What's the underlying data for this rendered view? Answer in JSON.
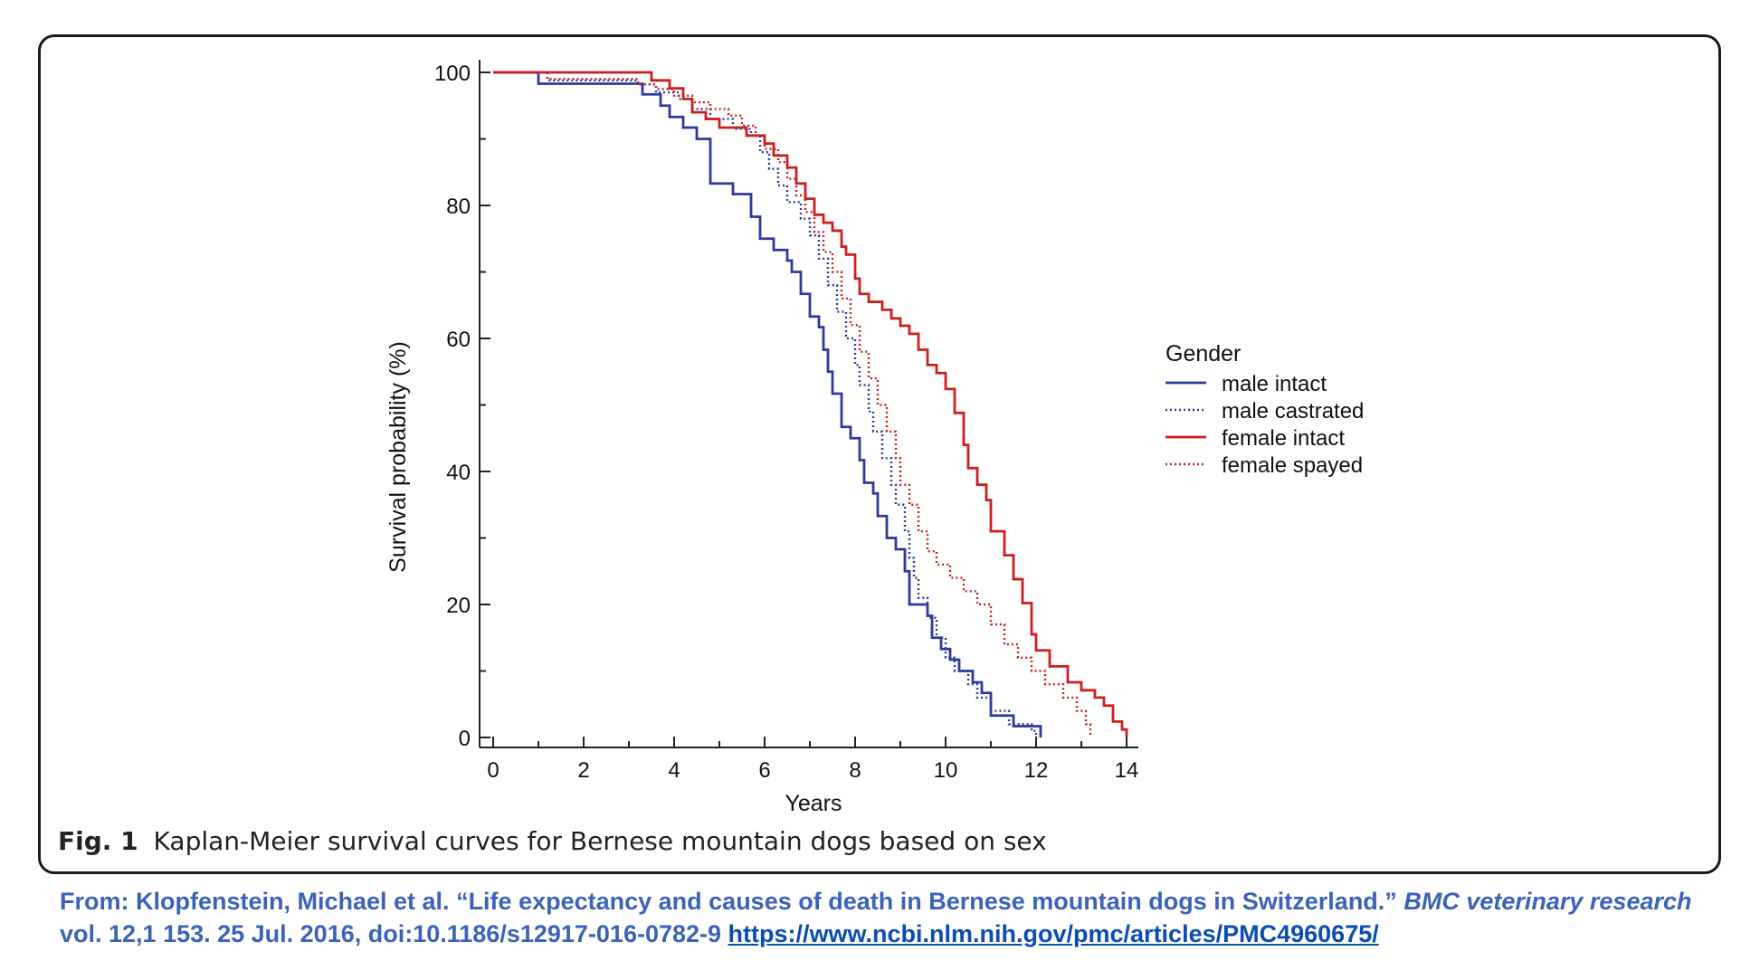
{
  "figure": {
    "caption_label": "Fig. 1",
    "caption_text": "Kaplan-Meier survival curves for Bernese mountain dogs based on sex"
  },
  "citation": {
    "part1": "From: Klopfenstein, Michael et al. “Life expectancy and causes of death in Bernese mountain dogs in Switzerland.”",
    "journal": "BMC veterinary research",
    "part2": "vol. 12,1 153. 25 Jul. 2016, doi:10.1186/s12917-016-0782-9",
    "link": "https://www.ncbi.nlm.nih.gov/pmc/articles/PMC4960675/"
  },
  "colors": {
    "male": "#2e3a9f",
    "female": "#cc1f1f"
  },
  "chart_data": {
    "type": "line",
    "xlabel": "Years",
    "ylabel": "Survival probability (%)",
    "xlim": [
      0,
      14
    ],
    "ylim": [
      0,
      100
    ],
    "xticks": [
      0,
      2,
      4,
      6,
      8,
      10,
      12,
      14
    ],
    "yticks": [
      0,
      20,
      40,
      60,
      80,
      100
    ],
    "grid": false,
    "legend": {
      "title": "Gender",
      "position": "right"
    },
    "series": [
      {
        "name": "male intact",
        "color": "#2e3a9f",
        "style": "solid",
        "points": [
          [
            0,
            100
          ],
          [
            1.0,
            98.3
          ],
          [
            3.3,
            96.7
          ],
          [
            3.7,
            95
          ],
          [
            3.9,
            93.3
          ],
          [
            4.2,
            91.7
          ],
          [
            4.5,
            90
          ],
          [
            4.8,
            83.3
          ],
          [
            5.3,
            81.7
          ],
          [
            5.7,
            78.3
          ],
          [
            5.9,
            75
          ],
          [
            6.2,
            73.3
          ],
          [
            6.5,
            71.7
          ],
          [
            6.6,
            70
          ],
          [
            6.8,
            66.7
          ],
          [
            7.0,
            63.3
          ],
          [
            7.2,
            61.7
          ],
          [
            7.3,
            58.3
          ],
          [
            7.4,
            55
          ],
          [
            7.5,
            51.7
          ],
          [
            7.7,
            46.7
          ],
          [
            7.9,
            45
          ],
          [
            8.1,
            41.7
          ],
          [
            8.2,
            38.3
          ],
          [
            8.4,
            36.7
          ],
          [
            8.5,
            33.3
          ],
          [
            8.7,
            30
          ],
          [
            8.9,
            28.3
          ],
          [
            9.1,
            25
          ],
          [
            9.2,
            20
          ],
          [
            9.6,
            18.3
          ],
          [
            9.7,
            15
          ],
          [
            9.9,
            13.3
          ],
          [
            10.1,
            11.7
          ],
          [
            10.3,
            10
          ],
          [
            10.6,
            8.3
          ],
          [
            10.8,
            6.7
          ],
          [
            11.0,
            3.3
          ],
          [
            11.5,
            1.7
          ],
          [
            12.1,
            1.7
          ],
          [
            12.1,
            0
          ]
        ]
      },
      {
        "name": "male castrated",
        "color": "#2e3a9f",
        "style": "dotted",
        "points": [
          [
            0,
            100
          ],
          [
            1.2,
            98.8
          ],
          [
            3.2,
            98.2
          ],
          [
            3.6,
            97
          ],
          [
            4.1,
            96
          ],
          [
            4.4,
            94.5
          ],
          [
            4.8,
            93
          ],
          [
            5.3,
            91.5
          ],
          [
            5.7,
            90.5
          ],
          [
            5.9,
            88
          ],
          [
            6.1,
            85.5
          ],
          [
            6.3,
            83
          ],
          [
            6.5,
            80.5
          ],
          [
            6.8,
            78
          ],
          [
            7.0,
            75.5
          ],
          [
            7.2,
            72
          ],
          [
            7.4,
            68
          ],
          [
            7.6,
            64
          ],
          [
            7.8,
            60
          ],
          [
            8.0,
            56
          ],
          [
            8.1,
            53
          ],
          [
            8.3,
            49
          ],
          [
            8.4,
            46
          ],
          [
            8.6,
            42
          ],
          [
            8.8,
            38
          ],
          [
            8.9,
            35
          ],
          [
            9.1,
            31
          ],
          [
            9.2,
            27
          ],
          [
            9.3,
            24
          ],
          [
            9.4,
            21
          ],
          [
            9.6,
            18
          ],
          [
            9.8,
            15
          ],
          [
            10.0,
            12
          ],
          [
            10.2,
            10
          ],
          [
            10.5,
            8
          ],
          [
            10.7,
            6
          ],
          [
            11.0,
            4
          ],
          [
            11.4,
            2
          ],
          [
            11.9,
            1
          ],
          [
            12.0,
            0
          ]
        ]
      },
      {
        "name": "female intact",
        "color": "#cc1f1f",
        "style": "solid",
        "points": [
          [
            0,
            100
          ],
          [
            3.5,
            98.8
          ],
          [
            3.9,
            97.6
          ],
          [
            4.2,
            96
          ],
          [
            4.4,
            94
          ],
          [
            4.7,
            93
          ],
          [
            5.0,
            91.7
          ],
          [
            5.6,
            90.5
          ],
          [
            6.0,
            89.3
          ],
          [
            6.2,
            87.5
          ],
          [
            6.5,
            85.7
          ],
          [
            6.7,
            83.3
          ],
          [
            6.9,
            81
          ],
          [
            7.1,
            78.6
          ],
          [
            7.3,
            77.4
          ],
          [
            7.5,
            76.2
          ],
          [
            7.7,
            73.8
          ],
          [
            7.8,
            72.6
          ],
          [
            8.0,
            69
          ],
          [
            8.1,
            66.7
          ],
          [
            8.3,
            65.5
          ],
          [
            8.6,
            64.3
          ],
          [
            8.8,
            63
          ],
          [
            9.0,
            61.9
          ],
          [
            9.2,
            60.7
          ],
          [
            9.4,
            58.3
          ],
          [
            9.6,
            56
          ],
          [
            9.8,
            54.8
          ],
          [
            10.0,
            52.4
          ],
          [
            10.2,
            48.8
          ],
          [
            10.4,
            44
          ],
          [
            10.5,
            40.5
          ],
          [
            10.7,
            38
          ],
          [
            10.9,
            35.7
          ],
          [
            11.0,
            31
          ],
          [
            11.3,
            27.4
          ],
          [
            11.5,
            23.8
          ],
          [
            11.7,
            20.2
          ],
          [
            11.9,
            15.5
          ],
          [
            12.0,
            13.1
          ],
          [
            12.3,
            10.7
          ],
          [
            12.7,
            8.3
          ],
          [
            13.0,
            7.1
          ],
          [
            13.3,
            6
          ],
          [
            13.5,
            4.8
          ],
          [
            13.7,
            2.4
          ],
          [
            13.9,
            1.2
          ],
          [
            14.0,
            0
          ]
        ]
      },
      {
        "name": "female spayed",
        "color": "#cc1f1f",
        "style": "dotted",
        "points": [
          [
            0,
            100
          ],
          [
            1.2,
            99
          ],
          [
            3.2,
            98.2
          ],
          [
            3.6,
            97.5
          ],
          [
            4.0,
            96.5
          ],
          [
            4.4,
            95.5
          ],
          [
            4.8,
            94.5
          ],
          [
            5.2,
            93.5
          ],
          [
            5.5,
            92
          ],
          [
            5.8,
            90.5
          ],
          [
            6.0,
            88.5
          ],
          [
            6.3,
            86.5
          ],
          [
            6.5,
            84
          ],
          [
            6.7,
            81.5
          ],
          [
            6.9,
            79
          ],
          [
            7.1,
            76
          ],
          [
            7.3,
            73
          ],
          [
            7.5,
            70
          ],
          [
            7.7,
            66
          ],
          [
            7.9,
            62
          ],
          [
            8.1,
            58
          ],
          [
            8.3,
            54
          ],
          [
            8.5,
            50
          ],
          [
            8.7,
            46
          ],
          [
            8.9,
            42
          ],
          [
            9.0,
            38
          ],
          [
            9.2,
            35
          ],
          [
            9.4,
            31
          ],
          [
            9.6,
            28
          ],
          [
            9.8,
            26
          ],
          [
            10.1,
            24
          ],
          [
            10.4,
            22
          ],
          [
            10.7,
            20
          ],
          [
            11.0,
            17
          ],
          [
            11.3,
            14
          ],
          [
            11.6,
            12
          ],
          [
            11.9,
            10
          ],
          [
            12.2,
            8
          ],
          [
            12.6,
            6
          ],
          [
            12.9,
            4
          ],
          [
            13.1,
            2
          ],
          [
            13.2,
            0
          ]
        ]
      }
    ]
  }
}
